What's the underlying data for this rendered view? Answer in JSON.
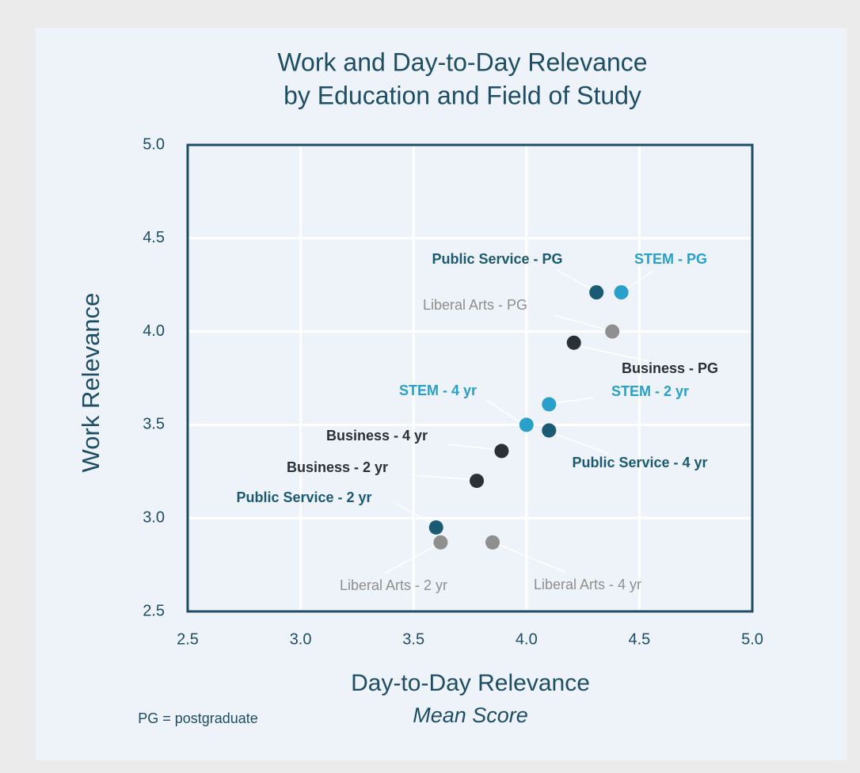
{
  "chart_data": {
    "type": "scatter",
    "title": [
      "Work and Day-to-Day Relevance",
      "by Education and Field of Study"
    ],
    "xlabel": "Day-to-Day Relevance",
    "xsublabel": "Mean Score",
    "ylabel": "Work Relevance",
    "note": "PG = postgraduate",
    "xlim": [
      2.5,
      5.0
    ],
    "ylim": [
      2.5,
      5.0
    ],
    "xticks": [
      2.5,
      {
        "value": 3,
        "label": "3.0"
      },
      3.5,
      {
        "value": 4,
        "label": "4.0"
      },
      4.5,
      {
        "value": 5,
        "label": "5.0"
      }
    ],
    "yticks": [
      2.5,
      {
        "value": 3,
        "label": "3.0"
      },
      3.5,
      {
        "value": 4,
        "label": "4.0"
      },
      4.5,
      {
        "value": 5,
        "label": "5.0"
      }
    ],
    "grid": true,
    "points": [
      {
        "label": "Public Service - PG",
        "x": 4.31,
        "y": 4.21,
        "color": "#1a5a73"
      },
      {
        "label": "STEM - PG",
        "x": 4.42,
        "y": 4.21,
        "color": "#2a9fc9"
      },
      {
        "label": "Liberal Arts - PG",
        "x": 4.38,
        "y": 4.0,
        "color": "#8f8f8f"
      },
      {
        "label": "Business - PG",
        "x": 4.21,
        "y": 3.94,
        "color": "#2b2f36"
      },
      {
        "label": "STEM - 2 yr",
        "x": 4.1,
        "y": 3.61,
        "color": "#2a9fc9"
      },
      {
        "label": "STEM - 4 yr",
        "x": 4.0,
        "y": 3.5,
        "color": "#2a9fc9"
      },
      {
        "label": "Public Service - 4 yr",
        "x": 4.1,
        "y": 3.47,
        "color": "#1a5a73"
      },
      {
        "label": "Business - 4 yr",
        "x": 3.89,
        "y": 3.36,
        "color": "#2b2f36"
      },
      {
        "label": "Business - 2 yr",
        "x": 3.78,
        "y": 3.2,
        "color": "#2b2f36"
      },
      {
        "label": "Public Service - 2 yr",
        "x": 3.6,
        "y": 2.95,
        "color": "#1a5a73"
      },
      {
        "label": "Liberal Arts - 2 yr",
        "x": 3.62,
        "y": 2.87,
        "color": "#8f8f8f"
      },
      {
        "label": "Liberal Arts - 4 yr",
        "x": 3.85,
        "y": 2.87,
        "color": "#8f8f8f"
      }
    ]
  }
}
